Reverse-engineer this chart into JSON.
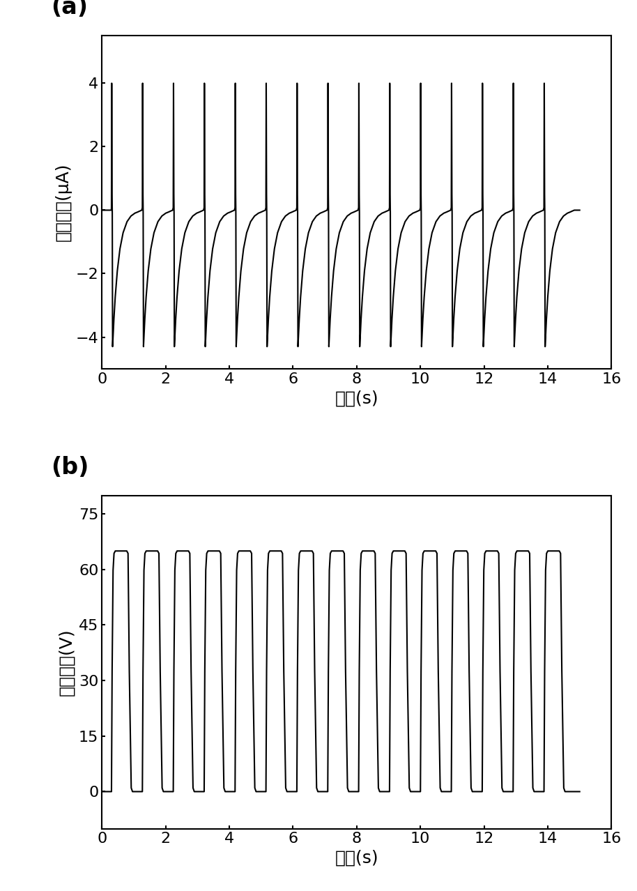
{
  "fig_width": 9.14,
  "fig_height": 12.78,
  "dpi": 100,
  "panel_a": {
    "ylabel": "短路电流(μA)",
    "xlabel": "时间(s)",
    "xlim": [
      0,
      16
    ],
    "ylim": [
      -5.0,
      5.5
    ],
    "yticks": [
      -4,
      -2,
      0,
      2,
      4
    ],
    "xticks": [
      0,
      2,
      4,
      6,
      8,
      10,
      12,
      14,
      16
    ],
    "peak_positive": 4.0,
    "peak_negative": -4.3,
    "n_cycles": 15,
    "period": 0.97,
    "start_time": 0.3,
    "label": "(a)"
  },
  "panel_b": {
    "ylabel": "开路电压(V)",
    "xlabel": "时间(s)",
    "xlim": [
      0,
      16
    ],
    "ylim": [
      -10,
      80
    ],
    "yticks": [
      0,
      15,
      30,
      45,
      60,
      75
    ],
    "xticks": [
      0,
      2,
      4,
      6,
      8,
      10,
      12,
      14,
      16
    ],
    "peak_voltage": 65,
    "n_cycles": 15,
    "period": 0.97,
    "start_time": 0.3,
    "label": "(b)"
  },
  "line_color": "#000000",
  "line_width": 1.5,
  "background_color": "#ffffff",
  "label_fontsize": 18,
  "tick_fontsize": 16,
  "panel_label_fontsize": 24
}
